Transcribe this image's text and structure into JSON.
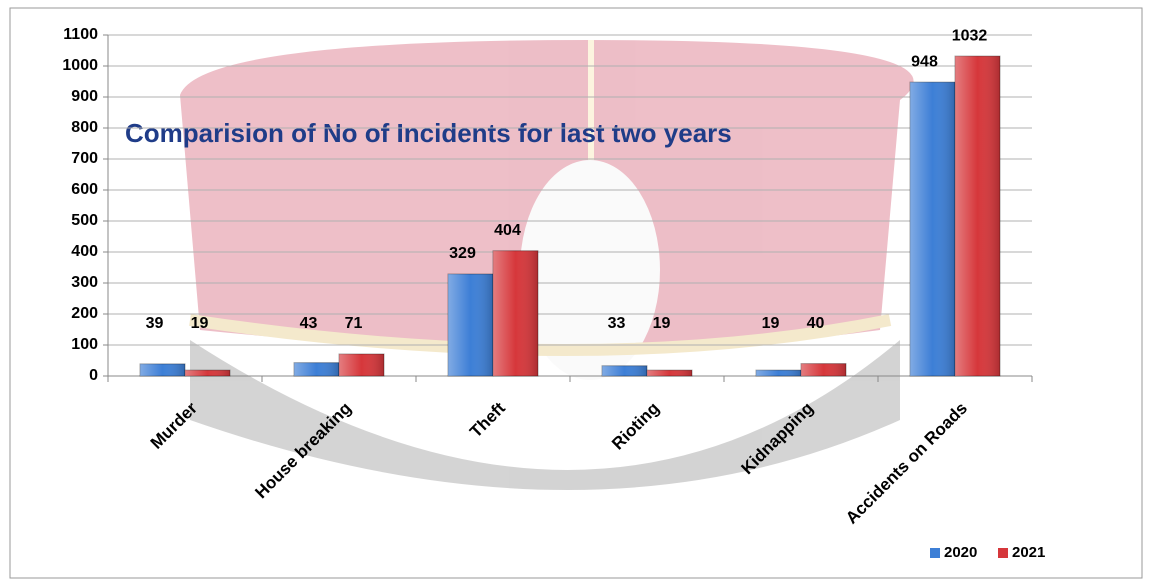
{
  "chart_data": {
    "type": "bar",
    "title": "Comparision of No of Incidents for last two years",
    "categories": [
      "Murder",
      "House breaking",
      "Theft",
      "Rioting",
      "Kidnapping",
      "Accidents on Roads"
    ],
    "series": [
      {
        "name": "2020",
        "color": "#3d7fd6",
        "values": [
          39,
          43,
          329,
          33,
          19,
          948
        ]
      },
      {
        "name": "2021",
        "color": "#d6373b",
        "values": [
          19,
          71,
          404,
          19,
          40,
          1032
        ]
      }
    ],
    "ylim": [
      0,
      1100
    ],
    "yticks": [
      0,
      100,
      200,
      300,
      400,
      500,
      600,
      700,
      800,
      900,
      1000,
      1100
    ],
    "grid": true,
    "legend": "bottom-right"
  }
}
